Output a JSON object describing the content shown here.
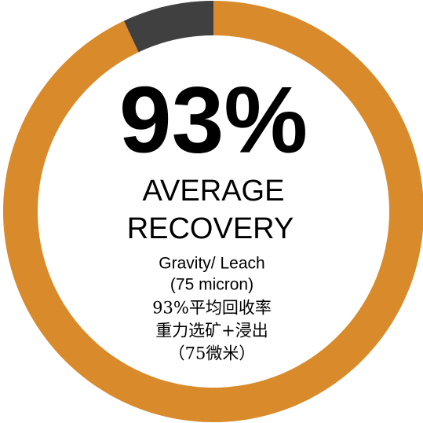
{
  "chart_data": {
    "type": "donut",
    "categories": [
      null,
      null
    ],
    "values": [
      93,
      7
    ],
    "value_labels": [
      "93%",
      null
    ],
    "colors": [
      "#d98b2b",
      "#404040"
    ],
    "annotations": [
      "AVERAGE",
      "RECOVERY",
      "Gravity/ Leach",
      "(75 micron)",
      "93%平均回收率",
      "重力选矿+浸出",
      "（75微米）"
    ]
  }
}
